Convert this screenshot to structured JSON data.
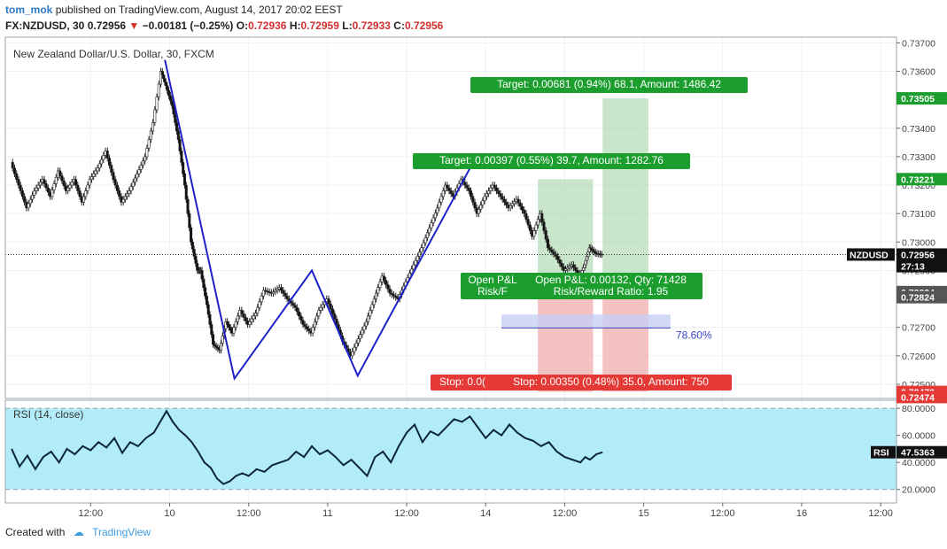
{
  "header": {
    "author": "tom_mok",
    "published_text": "published on TradingView.com, August 14, 2017 20:02 EEST",
    "symbol": "FX:NZDUSD, 30",
    "last": "0.72956",
    "change": "−0.00181 (−0.25%)",
    "open_label": "O:",
    "open": "0.72936",
    "high_label": "H:",
    "high": "0.72959",
    "low_label": "L:",
    "low": "0.72933",
    "close_label": "C:",
    "close": "0.72956"
  },
  "footer": {
    "created_with": "Created with",
    "brand": "TradingView"
  },
  "colors": {
    "up": "#2e7d32",
    "down": "#111111",
    "wave": "#1e22c8",
    "target_box": "#a5d6a7",
    "stop_box": "#ef9a9a",
    "target_label": "#1b9e2d",
    "stop_label": "#e53935",
    "rsi_fill": "#b3ecf9",
    "rsi_line": "#0b2540"
  },
  "chart_data": [
    {
      "type": "line",
      "title": "New Zealand Dollar/U.S. Dollar, 30, FXCM",
      "ylim": [
        0.7245,
        0.7372
      ],
      "yticks": [
        "0.73700",
        "0.73600",
        "0.73400",
        "0.73300",
        "0.73200",
        "0.73100",
        "0.73000",
        "0.72900",
        "0.72700",
        "0.72600",
        "0.72500"
      ],
      "xticks": [
        {
          "label": "12:00",
          "x": 0.5
        },
        {
          "label": "10",
          "x": 1.0
        },
        {
          "label": "12:00",
          "x": 1.5
        },
        {
          "label": "11",
          "x": 2.0
        },
        {
          "label": "12:00",
          "x": 2.5
        },
        {
          "label": "14",
          "x": 3.0
        },
        {
          "label": "12:00",
          "x": 3.5
        },
        {
          "label": "15",
          "x": 4.0
        },
        {
          "label": "12:00",
          "x": 4.5
        },
        {
          "label": "16",
          "x": 5.0
        },
        {
          "label": "12:00",
          "x": 5.5
        }
      ],
      "x_range": [
        -0.04,
        5.6
      ],
      "price_path": [
        [
          0.0,
          0.7328
        ],
        [
          0.05,
          0.732
        ],
        [
          0.1,
          0.7312
        ],
        [
          0.15,
          0.7318
        ],
        [
          0.2,
          0.7322
        ],
        [
          0.25,
          0.7316
        ],
        [
          0.3,
          0.7325
        ],
        [
          0.35,
          0.7318
        ],
        [
          0.4,
          0.7322
        ],
        [
          0.45,
          0.7314
        ],
        [
          0.5,
          0.7322
        ],
        [
          0.55,
          0.7326
        ],
        [
          0.6,
          0.7332
        ],
        [
          0.65,
          0.7322
        ],
        [
          0.7,
          0.7314
        ],
        [
          0.75,
          0.7318
        ],
        [
          0.8,
          0.7324
        ],
        [
          0.85,
          0.733
        ],
        [
          0.9,
          0.7342
        ],
        [
          0.95,
          0.736
        ],
        [
          0.98,
          0.7355
        ],
        [
          1.02,
          0.7348
        ],
        [
          1.06,
          0.7336
        ],
        [
          1.1,
          0.732
        ],
        [
          1.14,
          0.73
        ],
        [
          1.18,
          0.729
        ],
        [
          1.2,
          0.729
        ],
        [
          1.24,
          0.7278
        ],
        [
          1.28,
          0.7264
        ],
        [
          1.32,
          0.7262
        ],
        [
          1.36,
          0.7272
        ],
        [
          1.4,
          0.7268
        ],
        [
          1.45,
          0.7276
        ],
        [
          1.5,
          0.7271
        ],
        [
          1.55,
          0.7275
        ],
        [
          1.6,
          0.7283
        ],
        [
          1.65,
          0.7282
        ],
        [
          1.7,
          0.7284
        ],
        [
          1.75,
          0.728
        ],
        [
          1.8,
          0.7277
        ],
        [
          1.85,
          0.7271
        ],
        [
          1.9,
          0.7268
        ],
        [
          1.95,
          0.7276
        ],
        [
          2.0,
          0.728
        ],
        [
          2.05,
          0.7273
        ],
        [
          2.1,
          0.7265
        ],
        [
          2.15,
          0.726
        ],
        [
          2.2,
          0.7266
        ],
        [
          2.25,
          0.7272
        ],
        [
          2.3,
          0.728
        ],
        [
          2.35,
          0.7288
        ],
        [
          2.4,
          0.7282
        ],
        [
          2.45,
          0.728
        ],
        [
          2.5,
          0.7286
        ],
        [
          2.55,
          0.7292
        ],
        [
          2.6,
          0.7298
        ],
        [
          2.65,
          0.7305
        ],
        [
          2.7,
          0.7312
        ],
        [
          2.75,
          0.732
        ],
        [
          2.8,
          0.7316
        ],
        [
          2.85,
          0.7322
        ],
        [
          2.9,
          0.7318
        ],
        [
          2.95,
          0.731
        ],
        [
          3.0,
          0.7316
        ],
        [
          3.05,
          0.732
        ],
        [
          3.1,
          0.7316
        ],
        [
          3.15,
          0.7312
        ],
        [
          3.2,
          0.7315
        ],
        [
          3.25,
          0.731
        ],
        [
          3.3,
          0.7302
        ],
        [
          3.35,
          0.731
        ],
        [
          3.4,
          0.7298
        ],
        [
          3.45,
          0.7295
        ],
        [
          3.5,
          0.729
        ],
        [
          3.55,
          0.7292
        ],
        [
          3.6,
          0.7288
        ],
        [
          3.63,
          0.7292
        ],
        [
          3.66,
          0.7298
        ],
        [
          3.7,
          0.7296
        ],
        [
          3.74,
          0.72956
        ]
      ],
      "wave_points": [
        [
          1.41,
          0.7252
        ],
        [
          0.97,
          0.7364
        ],
        [
          1.41,
          0.7252
        ],
        [
          1.9,
          0.729
        ],
        [
          2.19,
          0.7253
        ],
        [
          2.94,
          0.733
        ]
      ],
      "price_axis_labels": [
        {
          "text": "0.73505",
          "price": 0.73505,
          "color": "#1b9e2d"
        },
        {
          "text": "0.73221",
          "price": 0.73221,
          "color": "#1b9e2d"
        },
        {
          "text": "NZDUSD",
          "price": 0.72956,
          "color": "#111111",
          "left": true
        },
        {
          "text": "0.72956",
          "price": 0.72956,
          "color": "#111111"
        },
        {
          "text": "27:13",
          "price": 0.72915,
          "color": "#111111"
        },
        {
          "text": "0.72824",
          "price": 0.72824,
          "color": "#555555"
        },
        {
          "text": "0.72824",
          "price": 0.72806,
          "color": "#555555"
        },
        {
          "text": "0.72473",
          "price": 0.72473,
          "color": "#e53935"
        },
        {
          "text": "0.72474",
          "price": 0.72455,
          "color": "#e53935"
        }
      ],
      "positions": [
        {
          "x0": 3.33,
          "x1": 3.68,
          "entry": 0.72824,
          "target": 0.73221,
          "stop": 0.72473
        },
        {
          "x0": 3.74,
          "x1": 4.03,
          "entry": 0.72824,
          "target": 0.73505,
          "stop": 0.72474
        }
      ],
      "fib_band": {
        "x0": 3.1,
        "x1": 4.17,
        "top": 0.72745,
        "bottom": 0.72698,
        "label": "78.60%"
      },
      "labels": {
        "target1": "Target: 0.00397 (0.55%) 39.7, Amount: 1282.76",
        "target2": "Target: 0.00681 (0.94%) 68.1, Amount: 1486.42",
        "open_pl_partial_1": "Open P&L",
        "open_pl_partial_2": "Risk/F",
        "open_pl_1": "Open P&L: 0.00132, Qty: 71428",
        "open_pl_2": "Risk/Reward Ratio: 1.95",
        "stop_partial": "Stop: 0.0(",
        "stop2": "Stop: 0.00350 (0.48%) 35.0, Amount: 750"
      }
    },
    {
      "type": "line",
      "title": "RSI (14, close)",
      "ylim": [
        10,
        86
      ],
      "yticks": [
        "80.0000",
        "60.0000",
        "40.0000",
        "20.0000"
      ],
      "bands": [
        20,
        80
      ],
      "last_label": "RSI",
      "last_value": "47.5363",
      "x": [
        0.0,
        0.05,
        0.1,
        0.15,
        0.2,
        0.25,
        0.3,
        0.35,
        0.4,
        0.45,
        0.5,
        0.55,
        0.6,
        0.65,
        0.7,
        0.75,
        0.8,
        0.85,
        0.9,
        0.95,
        0.98,
        1.02,
        1.06,
        1.1,
        1.14,
        1.18,
        1.22,
        1.26,
        1.3,
        1.34,
        1.38,
        1.42,
        1.46,
        1.5,
        1.55,
        1.6,
        1.65,
        1.7,
        1.75,
        1.8,
        1.85,
        1.9,
        1.95,
        2.0,
        2.05,
        2.1,
        2.15,
        2.2,
        2.25,
        2.3,
        2.35,
        2.4,
        2.45,
        2.5,
        2.55,
        2.6,
        2.65,
        2.7,
        2.75,
        2.8,
        2.85,
        2.9,
        2.95,
        3.0,
        3.05,
        3.1,
        3.15,
        3.2,
        3.25,
        3.3,
        3.35,
        3.4,
        3.45,
        3.5,
        3.55,
        3.6,
        3.63,
        3.66,
        3.7,
        3.74
      ],
      "values": [
        50,
        37,
        45,
        35,
        44,
        48,
        40,
        50,
        46,
        52,
        49,
        55,
        51,
        58,
        47,
        55,
        52,
        58,
        62,
        72,
        78,
        70,
        64,
        60,
        55,
        48,
        40,
        36,
        28,
        24,
        26,
        30,
        32,
        30,
        35,
        33,
        38,
        40,
        42,
        48,
        44,
        52,
        46,
        49,
        44,
        38,
        42,
        36,
        30,
        44,
        48,
        40,
        52,
        62,
        68,
        55,
        63,
        60,
        66,
        72,
        70,
        74,
        66,
        58,
        64,
        60,
        68,
        62,
        58,
        56,
        52,
        55,
        48,
        44,
        42,
        40,
        44,
        42,
        46,
        47.5363
      ]
    }
  ]
}
